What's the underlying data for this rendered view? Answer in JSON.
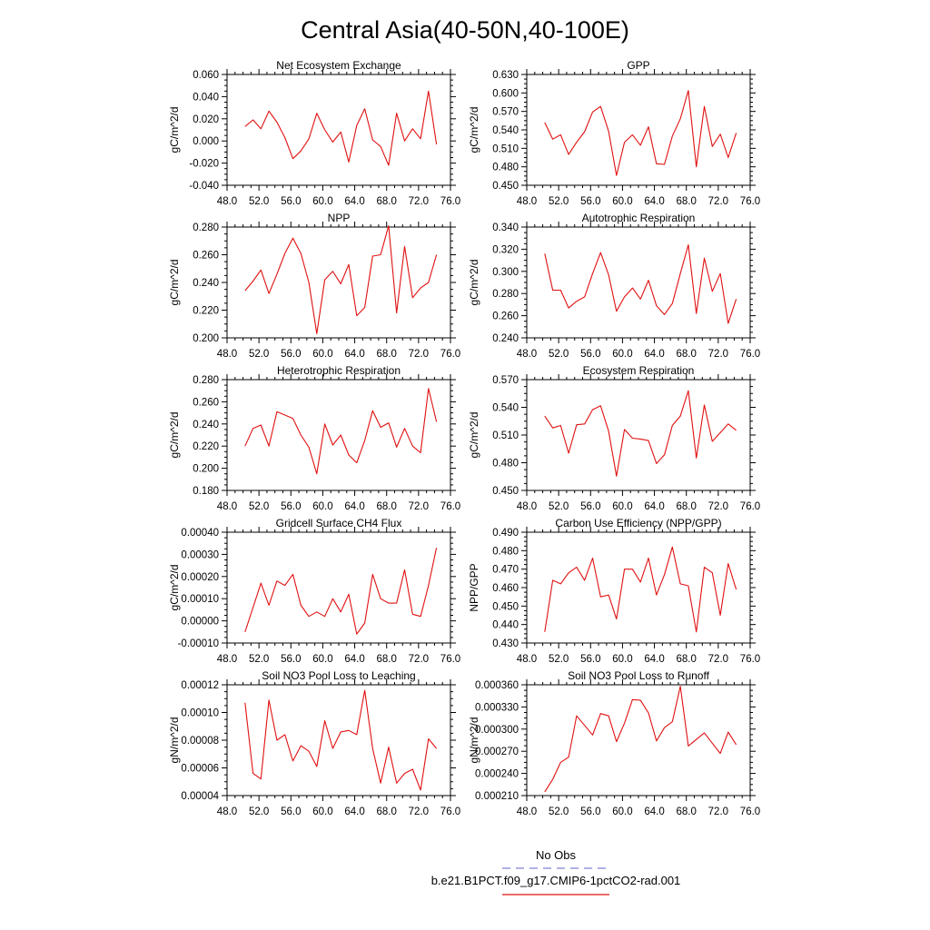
{
  "page": {
    "title": "Central Asia(40-50N,40-100E)"
  },
  "legend": {
    "obs_label": "No Obs",
    "obs_color": "#8080d8",
    "model_label": "b.e21.B1PCT.f09_g17.CMIP6-1pctCO2-rad.001",
    "model_color": "#e01010"
  },
  "chart_data": [
    {
      "type": "line",
      "title": "Net Ecosystem Exchange",
      "ylabel": "gC/m^2/d",
      "xlim": [
        48,
        76
      ],
      "ylim": [
        -0.04,
        0.06
      ],
      "x_ticks": [
        "48.0",
        "52.0",
        "56.0",
        "60.0",
        "64.0",
        "68.0",
        "72.0",
        "76.0"
      ],
      "y_ticks": [
        "-0.040",
        "-0.020",
        "0.000",
        "0.020",
        "0.040",
        "0.060"
      ],
      "x": [
        50.25,
        51.25,
        52.25,
        53.25,
        54.25,
        55.25,
        56.25,
        57.25,
        58.25,
        59.25,
        60.25,
        61.25,
        62.25,
        63.25,
        64.25,
        65.25,
        66.25,
        67.25,
        68.25,
        69.25,
        70.25,
        71.25,
        72.25,
        73.25,
        74.25
      ],
      "series": [
        {
          "values": [
            0.013,
            0.019,
            0.011,
            0.027,
            0.017,
            0.003,
            -0.016,
            -0.009,
            0.002,
            0.025,
            0.01,
            -0.001,
            0.008,
            -0.019,
            0.014,
            0.029,
            0.001,
            -0.005,
            -0.022,
            0.025,
            0.0,
            0.011,
            0.002,
            0.045,
            -0.003
          ]
        }
      ]
    },
    {
      "type": "line",
      "title": "GPP",
      "ylabel": "gC/m^2/d",
      "xlim": [
        48,
        76
      ],
      "ylim": [
        0.45,
        0.63
      ],
      "x_ticks": [
        "48.0",
        "52.0",
        "56.0",
        "60.0",
        "64.0",
        "68.0",
        "72.0",
        "76.0"
      ],
      "y_ticks": [
        "0.450",
        "0.480",
        "0.510",
        "0.540",
        "0.570",
        "0.600",
        "0.630"
      ],
      "x": [
        50.25,
        51.25,
        52.25,
        53.25,
        54.25,
        55.25,
        56.25,
        57.25,
        58.25,
        59.25,
        60.25,
        61.25,
        62.25,
        63.25,
        64.25,
        65.25,
        66.25,
        67.25,
        68.25,
        69.25,
        70.25,
        71.25,
        72.25,
        73.25,
        74.25
      ],
      "series": [
        {
          "values": [
            0.552,
            0.525,
            0.532,
            0.5,
            0.52,
            0.537,
            0.569,
            0.578,
            0.538,
            0.466,
            0.52,
            0.532,
            0.515,
            0.545,
            0.485,
            0.484,
            0.53,
            0.558,
            0.604,
            0.48,
            0.578,
            0.513,
            0.533,
            0.495,
            0.535
          ]
        }
      ]
    },
    {
      "type": "line",
      "title": "NPP",
      "ylabel": "gC/m^2/d",
      "xlim": [
        48,
        76
      ],
      "ylim": [
        0.2,
        0.28
      ],
      "x_ticks": [
        "48.0",
        "52.0",
        "56.0",
        "60.0",
        "64.0",
        "68.0",
        "72.0",
        "76.0"
      ],
      "y_ticks": [
        "0.200",
        "0.220",
        "0.240",
        "0.260",
        "0.280"
      ],
      "x": [
        50.25,
        51.25,
        52.25,
        53.25,
        54.25,
        55.25,
        56.25,
        57.25,
        58.25,
        59.25,
        60.25,
        61.25,
        62.25,
        63.25,
        64.25,
        65.25,
        66.25,
        67.25,
        68.25,
        69.25,
        70.25,
        71.25,
        72.25,
        73.25,
        74.25
      ],
      "series": [
        {
          "values": [
            0.234,
            0.241,
            0.249,
            0.232,
            0.246,
            0.261,
            0.272,
            0.261,
            0.24,
            0.203,
            0.242,
            0.248,
            0.239,
            0.253,
            0.216,
            0.222,
            0.259,
            0.26,
            0.281,
            0.218,
            0.266,
            0.229,
            0.236,
            0.24,
            0.26
          ]
        }
      ]
    },
    {
      "type": "line",
      "title": "Autotrophic Respiration",
      "ylabel": "gC/m^2/d",
      "xlim": [
        48,
        76
      ],
      "ylim": [
        0.24,
        0.34
      ],
      "x_ticks": [
        "48.0",
        "52.0",
        "56.0",
        "60.0",
        "64.0",
        "68.0",
        "72.0",
        "76.0"
      ],
      "y_ticks": [
        "0.240",
        "0.260",
        "0.280",
        "0.300",
        "0.320",
        "0.340"
      ],
      "x": [
        50.25,
        51.25,
        52.25,
        53.25,
        54.25,
        55.25,
        56.25,
        57.25,
        58.25,
        59.25,
        60.25,
        61.25,
        62.25,
        63.25,
        64.25,
        65.25,
        66.25,
        67.25,
        68.25,
        69.25,
        70.25,
        71.25,
        72.25,
        73.25,
        74.25
      ],
      "series": [
        {
          "values": [
            0.316,
            0.283,
            0.283,
            0.267,
            0.273,
            0.277,
            0.298,
            0.317,
            0.297,
            0.264,
            0.277,
            0.285,
            0.275,
            0.292,
            0.269,
            0.261,
            0.271,
            0.298,
            0.324,
            0.262,
            0.312,
            0.282,
            0.298,
            0.253,
            0.275
          ]
        }
      ]
    },
    {
      "type": "line",
      "title": "Heterotrophic Respiration",
      "ylabel": "gC/m^2/d",
      "xlim": [
        48,
        76
      ],
      "ylim": [
        0.18,
        0.28
      ],
      "x_ticks": [
        "48.0",
        "52.0",
        "56.0",
        "60.0",
        "64.0",
        "68.0",
        "72.0",
        "76.0"
      ],
      "y_ticks": [
        "0.180",
        "0.200",
        "0.220",
        "0.240",
        "0.260",
        "0.280"
      ],
      "x": [
        50.25,
        51.25,
        52.25,
        53.25,
        54.25,
        55.25,
        56.25,
        57.25,
        58.25,
        59.25,
        60.25,
        61.25,
        62.25,
        63.25,
        64.25,
        65.25,
        66.25,
        67.25,
        68.25,
        69.25,
        70.25,
        71.25,
        72.25,
        73.25,
        74.25
      ],
      "series": [
        {
          "values": [
            0.22,
            0.236,
            0.239,
            0.22,
            0.251,
            0.248,
            0.245,
            0.23,
            0.219,
            0.195,
            0.24,
            0.221,
            0.23,
            0.212,
            0.205,
            0.225,
            0.252,
            0.237,
            0.241,
            0.219,
            0.236,
            0.22,
            0.214,
            0.272,
            0.242
          ]
        }
      ]
    },
    {
      "type": "line",
      "title": "Ecosystem Respiration",
      "ylabel": "gC/m^2/d",
      "xlim": [
        48,
        76
      ],
      "ylim": [
        0.44,
        0.58
      ],
      "x_ticks": [
        "48.0",
        "52.0",
        "56.0",
        "60.0",
        "64.0",
        "68.0",
        "72.0",
        "76.0"
      ],
      "y_ticks": [
        "0.450",
        "0.480",
        "0.510",
        "0.540",
        "0.570"
      ],
      "x": [
        50.25,
        51.25,
        52.25,
        53.25,
        54.25,
        55.25,
        56.25,
        57.25,
        58.25,
        59.25,
        60.25,
        61.25,
        62.25,
        63.25,
        64.25,
        65.25,
        66.25,
        67.25,
        68.25,
        69.25,
        70.25,
        71.25,
        72.25,
        73.25,
        74.25
      ],
      "series": [
        {
          "values": [
            0.534,
            0.519,
            0.522,
            0.487,
            0.523,
            0.524,
            0.542,
            0.547,
            0.515,
            0.458,
            0.517,
            0.506,
            0.505,
            0.503,
            0.474,
            0.485,
            0.522,
            0.534,
            0.566,
            0.481,
            0.548,
            0.502,
            0.513,
            0.524,
            0.516
          ]
        }
      ]
    },
    {
      "type": "line",
      "title": "Gridcell Surface CH4 Flux",
      "ylabel": "gC/m^2/d",
      "xlim": [
        48,
        76
      ],
      "ylim": [
        -0.0001,
        0.0004
      ],
      "x_ticks": [
        "48.0",
        "52.0",
        "56.0",
        "60.0",
        "64.0",
        "68.0",
        "72.0",
        "76.0"
      ],
      "y_ticks": [
        "-0.00010",
        "0.00000",
        "0.00010",
        "0.00020",
        "0.00030",
        "0.00040"
      ],
      "x": [
        50.25,
        51.25,
        52.25,
        53.25,
        54.25,
        55.25,
        56.25,
        57.25,
        58.25,
        59.25,
        60.25,
        61.25,
        62.25,
        63.25,
        64.25,
        65.25,
        66.25,
        67.25,
        68.25,
        69.25,
        70.25,
        71.25,
        72.25,
        73.25,
        74.25
      ],
      "series": [
        {
          "values": [
            -5e-05,
            6e-05,
            0.00017,
            7e-05,
            0.00018,
            0.00016,
            0.00021,
            7e-05,
            2e-05,
            4e-05,
            2e-05,
            0.0001,
            4e-05,
            0.00012,
            -6e-05,
            -1e-05,
            0.00021,
            0.0001,
            8e-05,
            8e-05,
            0.00023,
            3e-05,
            2e-05,
            0.00016,
            0.00033
          ]
        }
      ]
    },
    {
      "type": "line",
      "title": "Carbon Use Efficiency (NPP/GPP)",
      "ylabel": "NPP/GPP",
      "xlim": [
        48,
        76
      ],
      "ylim": [
        0.43,
        0.49
      ],
      "x_ticks": [
        "48.0",
        "52.0",
        "56.0",
        "60.0",
        "64.0",
        "68.0",
        "72.0",
        "76.0"
      ],
      "y_ticks": [
        "0.430",
        "0.440",
        "0.450",
        "0.460",
        "0.470",
        "0.480",
        "0.490"
      ],
      "x": [
        50.25,
        51.25,
        52.25,
        53.25,
        54.25,
        55.25,
        56.25,
        57.25,
        58.25,
        59.25,
        60.25,
        61.25,
        62.25,
        63.25,
        64.25,
        65.25,
        66.25,
        67.25,
        68.25,
        69.25,
        70.25,
        71.25,
        72.25,
        73.25,
        74.25
      ],
      "series": [
        {
          "values": [
            0.436,
            0.464,
            0.462,
            0.468,
            0.471,
            0.464,
            0.476,
            0.455,
            0.456,
            0.443,
            0.47,
            0.47,
            0.463,
            0.476,
            0.456,
            0.467,
            0.482,
            0.462,
            0.461,
            0.436,
            0.471,
            0.468,
            0.445,
            0.473,
            0.459
          ]
        }
      ]
    },
    {
      "type": "line",
      "title": "Soil NO3 Pool Loss to Leaching",
      "ylabel": "gN/m^2/d",
      "xlim": [
        48,
        76
      ],
      "ylim": [
        4e-05,
        0.00012
      ],
      "x_ticks": [
        "48.0",
        "52.0",
        "56.0",
        "60.0",
        "64.0",
        "68.0",
        "72.0",
        "76.0"
      ],
      "y_ticks": [
        "0.00004",
        "0.00006",
        "0.00008",
        "0.00010",
        "0.00012"
      ],
      "x": [
        50.25,
        51.25,
        52.25,
        53.25,
        54.25,
        55.25,
        56.25,
        57.25,
        58.25,
        59.25,
        60.25,
        61.25,
        62.25,
        63.25,
        64.25,
        65.25,
        66.25,
        67.25,
        68.25,
        69.25,
        70.25,
        71.25,
        72.25,
        73.25,
        74.25
      ],
      "series": [
        {
          "values": [
            0.000107,
            5.6e-05,
            5.2e-05,
            0.000109,
            8e-05,
            8.4e-05,
            6.5e-05,
            7.6e-05,
            7.2e-05,
            6.1e-05,
            9.4e-05,
            7.4e-05,
            8.6e-05,
            8.7e-05,
            8.4e-05,
            0.000116,
            7.4e-05,
            4.9e-05,
            7.5e-05,
            4.9e-05,
            5.6e-05,
            5.9e-05,
            4.4e-05,
            8.1e-05,
            7.4e-05
          ]
        }
      ]
    },
    {
      "type": "line",
      "title": "Soil NO3 Pool Loss to Runoff",
      "ylabel": "gN/m^2/d",
      "xlim": [
        48,
        76
      ],
      "ylim": [
        0.00021,
        0.00036
      ],
      "x_ticks": [
        "48.0",
        "52.0",
        "56.0",
        "60.0",
        "64.0",
        "68.0",
        "72.0",
        "76.0"
      ],
      "y_ticks": [
        "0.000210",
        "0.000240",
        "0.000270",
        "0.000300",
        "0.000330",
        "0.000360"
      ],
      "x": [
        50.25,
        51.25,
        52.25,
        53.25,
        54.25,
        55.25,
        56.25,
        57.25,
        58.25,
        59.25,
        60.25,
        61.25,
        62.25,
        63.25,
        64.25,
        65.25,
        66.25,
        67.25,
        68.25,
        69.25,
        70.25,
        71.25,
        72.25,
        73.25,
        74.25
      ],
      "series": [
        {
          "values": [
            0.000215,
            0.000232,
            0.000255,
            0.000262,
            0.000318,
            0.000305,
            0.000292,
            0.000321,
            0.000318,
            0.000283,
            0.000308,
            0.00034,
            0.000339,
            0.000322,
            0.000284,
            0.000302,
            0.00031,
            0.000358,
            0.000277,
            0.000286,
            0.000295,
            0.000281,
            0.000267,
            0.000296,
            0.000279
          ]
        }
      ]
    }
  ]
}
